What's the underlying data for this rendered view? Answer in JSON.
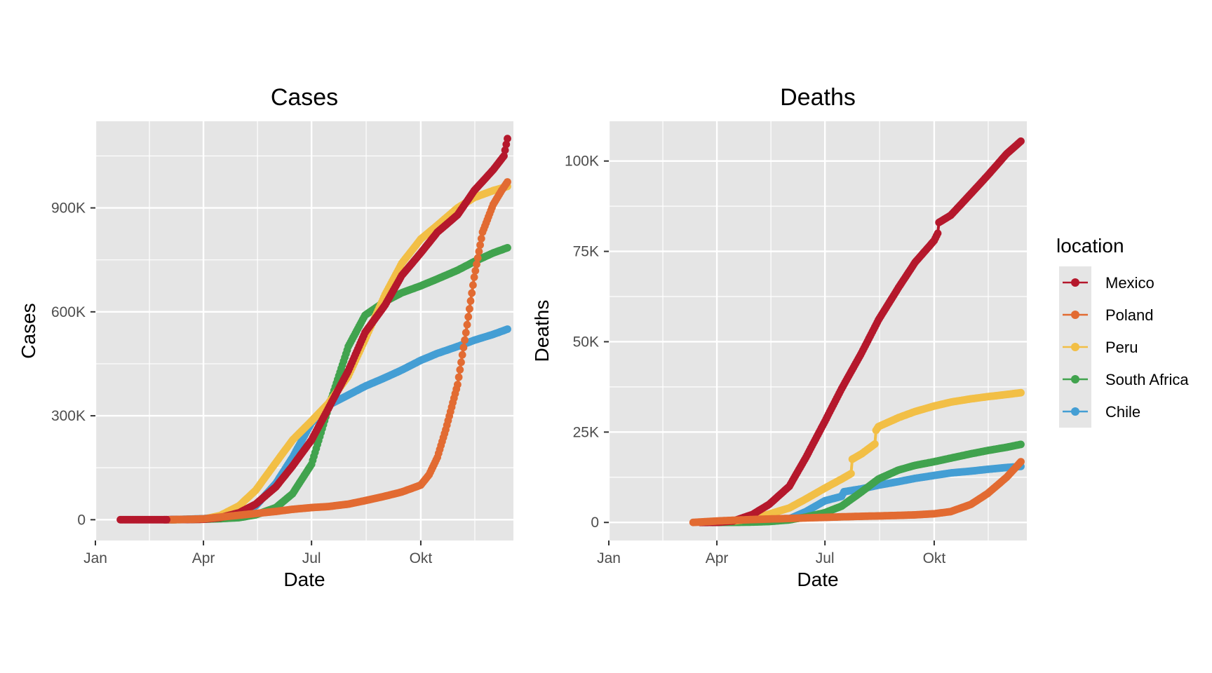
{
  "chart_data": [
    {
      "type": "line",
      "id": "cases",
      "title": "Cases",
      "xlabel": "Date",
      "ylabel": "Cases",
      "x_ticks": [
        "Jan",
        "Apr",
        "Jul",
        "Okt"
      ],
      "x_tick_dates": [
        "2020-01-01",
        "2020-04-01",
        "2020-07-01",
        "2020-10-01"
      ],
      "xlim": [
        "2020-01-01",
        "2020-12-18"
      ],
      "y_ticks": [
        "0",
        "300K",
        "600K",
        "900K"
      ],
      "y_tick_values": [
        0,
        300000,
        600000,
        900000
      ],
      "ylim": [
        -60000,
        1150000
      ],
      "series": [
        {
          "name": "Chile",
          "dates": [
            "2020-03-03",
            "2020-04-01",
            "2020-04-15",
            "2020-05-01",
            "2020-05-15",
            "2020-06-01",
            "2020-06-15",
            "2020-07-01",
            "2020-07-15",
            "2020-08-01",
            "2020-08-15",
            "2020-09-01",
            "2020-09-15",
            "2020-10-01",
            "2020-10-15",
            "2020-11-01",
            "2020-11-15",
            "2020-12-01",
            "2020-12-13"
          ],
          "values": [
            0,
            3000,
            8000,
            18000,
            40000,
            105000,
            180000,
            280000,
            330000,
            360000,
            385000,
            410000,
            432000,
            460000,
            480000,
            500000,
            518000,
            535000,
            550000
          ]
        },
        {
          "name": "South Africa",
          "dates": [
            "2020-03-05",
            "2020-04-01",
            "2020-04-15",
            "2020-05-01",
            "2020-05-15",
            "2020-06-01",
            "2020-06-15",
            "2020-07-01",
            "2020-07-15",
            "2020-08-01",
            "2020-08-15",
            "2020-09-01",
            "2020-09-15",
            "2020-10-01",
            "2020-10-15",
            "2020-11-01",
            "2020-11-15",
            "2020-12-01",
            "2020-12-13"
          ],
          "values": [
            0,
            1500,
            3000,
            6000,
            14000,
            35000,
            75000,
            160000,
            320000,
            500000,
            590000,
            630000,
            655000,
            675000,
            695000,
            720000,
            745000,
            770000,
            785000
          ]
        },
        {
          "name": "Peru",
          "dates": [
            "2020-03-06",
            "2020-04-01",
            "2020-04-15",
            "2020-05-01",
            "2020-05-15",
            "2020-06-01",
            "2020-06-15",
            "2020-07-01",
            "2020-07-15",
            "2020-08-01",
            "2020-08-15",
            "2020-09-01",
            "2020-09-15",
            "2020-10-01",
            "2020-10-15",
            "2020-11-01",
            "2020-11-15",
            "2020-12-01",
            "2020-12-13"
          ],
          "values": [
            0,
            1400,
            12000,
            40000,
            85000,
            165000,
            230000,
            285000,
            335000,
            415000,
            520000,
            650000,
            740000,
            810000,
            850000,
            900000,
            930000,
            950000,
            962000
          ]
        },
        {
          "name": "Mexico",
          "dates": [
            "2020-02-28",
            "2020-04-01",
            "2020-04-15",
            "2020-05-01",
            "2020-05-15",
            "2020-06-01",
            "2020-06-15",
            "2020-07-01",
            "2020-07-15",
            "2020-08-01",
            "2020-08-15",
            "2020-09-01",
            "2020-09-15",
            "2020-10-01",
            "2020-10-15",
            "2020-11-01",
            "2020-11-15",
            "2020-12-01",
            "2020-12-10",
            "2020-12-13"
          ],
          "values": [
            0,
            1300,
            6000,
            20000,
            45000,
            95000,
            155000,
            230000,
            320000,
            430000,
            540000,
            620000,
            705000,
            770000,
            830000,
            880000,
            950000,
            1010000,
            1050000,
            1100000
          ]
        },
        {
          "name": "Poland",
          "dates": [
            "2020-03-04",
            "2020-04-01",
            "2020-04-15",
            "2020-05-01",
            "2020-05-15",
            "2020-06-01",
            "2020-06-15",
            "2020-07-01",
            "2020-07-15",
            "2020-08-01",
            "2020-08-15",
            "2020-09-01",
            "2020-09-15",
            "2020-10-01",
            "2020-10-08",
            "2020-10-15",
            "2020-10-22",
            "2020-11-01",
            "2020-11-08",
            "2020-11-15",
            "2020-11-22",
            "2020-12-01",
            "2020-12-08",
            "2020-12-13"
          ],
          "values": [
            0,
            2500,
            7500,
            13000,
            18000,
            24000,
            30000,
            35000,
            38000,
            45000,
            55000,
            68000,
            80000,
            100000,
            130000,
            180000,
            260000,
            390000,
            540000,
            700000,
            830000,
            910000,
            950000,
            975000
          ]
        },
        {
          "name": "",
          "dates": [
            "2020-01-22",
            "2020-02-10",
            "2020-03-01"
          ],
          "values": [
            0,
            0,
            0
          ]
        }
      ]
    },
    {
      "type": "line",
      "id": "deaths",
      "title": "Deaths",
      "xlabel": "Date",
      "ylabel": "Deaths",
      "x_ticks": [
        "Jan",
        "Apr",
        "Jul",
        "Okt"
      ],
      "x_tick_dates": [
        "2020-01-01",
        "2020-04-01",
        "2020-07-01",
        "2020-10-01"
      ],
      "xlim": [
        "2020-01-01",
        "2020-12-18"
      ],
      "y_ticks": [
        "0",
        "25K",
        "50K",
        "75K",
        "100K"
      ],
      "y_tick_values": [
        0,
        25000,
        50000,
        75000,
        100000
      ],
      "ylim": [
        -5000,
        111000
      ],
      "series": [
        {
          "name": "Chile",
          "dates": [
            "2020-03-22",
            "2020-04-15",
            "2020-05-01",
            "2020-05-15",
            "2020-06-01",
            "2020-06-15",
            "2020-07-01",
            "2020-07-15",
            "2020-07-17",
            "2020-08-01",
            "2020-08-15",
            "2020-09-01",
            "2020-09-15",
            "2020-10-01",
            "2020-10-15",
            "2020-11-01",
            "2020-11-15",
            "2020-12-01",
            "2020-12-13"
          ],
          "values": [
            0,
            100,
            250,
            500,
            1000,
            3000,
            6000,
            7200,
            8500,
            9300,
            10300,
            11300,
            12200,
            13000,
            13700,
            14200,
            14700,
            15200,
            15500
          ]
        },
        {
          "name": "South Africa",
          "dates": [
            "2020-03-27",
            "2020-04-15",
            "2020-05-01",
            "2020-05-15",
            "2020-06-01",
            "2020-06-15",
            "2020-07-01",
            "2020-07-15",
            "2020-08-01",
            "2020-08-15",
            "2020-09-01",
            "2020-09-15",
            "2020-10-01",
            "2020-10-15",
            "2020-11-01",
            "2020-11-15",
            "2020-12-01",
            "2020-12-13"
          ],
          "values": [
            0,
            30,
            100,
            250,
            700,
            1500,
            2700,
            4500,
            8500,
            12000,
            14500,
            15800,
            16800,
            17800,
            19000,
            19900,
            20800,
            21600
          ]
        },
        {
          "name": "Peru",
          "dates": [
            "2020-03-20",
            "2020-04-15",
            "2020-05-01",
            "2020-05-15",
            "2020-06-01",
            "2020-06-15",
            "2020-07-01",
            "2020-07-15",
            "2020-07-23",
            "2020-07-24",
            "2020-08-01",
            "2020-08-12",
            "2020-08-13",
            "2020-08-15",
            "2020-09-01",
            "2020-09-15",
            "2020-10-01",
            "2020-10-15",
            "2020-11-01",
            "2020-11-15",
            "2020-12-01",
            "2020-12-13"
          ],
          "values": [
            0,
            400,
            1000,
            2300,
            4000,
            6500,
            9500,
            12000,
            13500,
            17500,
            19000,
            21700,
            25500,
            26500,
            29000,
            30700,
            32200,
            33300,
            34200,
            34800,
            35400,
            35900
          ]
        },
        {
          "name": "Mexico",
          "dates": [
            "2020-03-18",
            "2020-04-01",
            "2020-04-15",
            "2020-05-01",
            "2020-05-15",
            "2020-06-01",
            "2020-06-15",
            "2020-07-01",
            "2020-07-15",
            "2020-08-01",
            "2020-08-15",
            "2020-09-01",
            "2020-09-15",
            "2020-10-01",
            "2020-10-04",
            "2020-10-05",
            "2020-10-15",
            "2020-11-01",
            "2020-11-15",
            "2020-12-01",
            "2020-12-13"
          ],
          "values": [
            0,
            30,
            400,
            2200,
            5000,
            10000,
            18000,
            28000,
            37000,
            47000,
            56000,
            65000,
            72000,
            78000,
            80000,
            83000,
            85000,
            91000,
            96000,
            102000,
            105500
          ]
        },
        {
          "name": "Poland",
          "dates": [
            "2020-03-12",
            "2020-04-01",
            "2020-04-15",
            "2020-05-01",
            "2020-05-15",
            "2020-06-01",
            "2020-06-15",
            "2020-07-01",
            "2020-07-15",
            "2020-08-01",
            "2020-08-15",
            "2020-09-01",
            "2020-09-15",
            "2020-10-01",
            "2020-10-15",
            "2020-11-01",
            "2020-11-15",
            "2020-12-01",
            "2020-12-13"
          ],
          "values": [
            0,
            400,
            600,
            800,
            950,
            1100,
            1250,
            1400,
            1550,
            1700,
            1800,
            1950,
            2100,
            2400,
            3000,
            5000,
            8000,
            12500,
            16800
          ]
        }
      ]
    }
  ],
  "legend": {
    "title": "location",
    "entries": [
      "Mexico",
      "Poland",
      "Peru",
      "South Africa",
      "Chile"
    ],
    "placement": "right"
  },
  "colors": {
    "Mexico": "#b5182c",
    "Poland": "#e26b32",
    "Peru": "#f2bf46",
    "South Africa": "#41a34e",
    "Chile": "#449ed4",
    "panel_background": "#e5e5e5",
    "grid": "#ffffff"
  },
  "grid": true
}
